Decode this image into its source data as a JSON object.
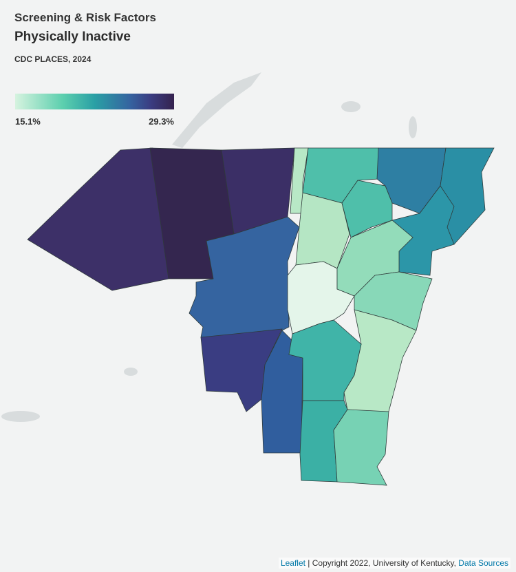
{
  "header": {
    "category": "Screening & Risk Factors",
    "title": "Physically Inactive",
    "source": "CDC PLACES, 2024"
  },
  "legend": {
    "min_label": "15.1%",
    "max_label": "29.3%",
    "min_color": "#d6f3df",
    "max_color": "#35224e"
  },
  "attribution": {
    "leaflet": "Leaflet",
    "separator": " | Copyright 2022, University of Kentucky, ",
    "data_sources": "Data Sources"
  },
  "regions": {
    "fills": [
      "#3d3068",
      "#34264f",
      "#3b2f66",
      "#3564a0",
      "#3a3d82",
      "#305e9e",
      "#b8e8c6",
      "#4fbfaa",
      "#b5e6c4",
      "#e4f5ea",
      "#2e7fa3",
      "#2a8fa5",
      "#4fbfaa",
      "#2c96a8",
      "#93dcba",
      "#88d8b8",
      "#b8e8c6",
      "#40b4a8",
      "#3bb0a5",
      "#77d2b4"
    ]
  }
}
